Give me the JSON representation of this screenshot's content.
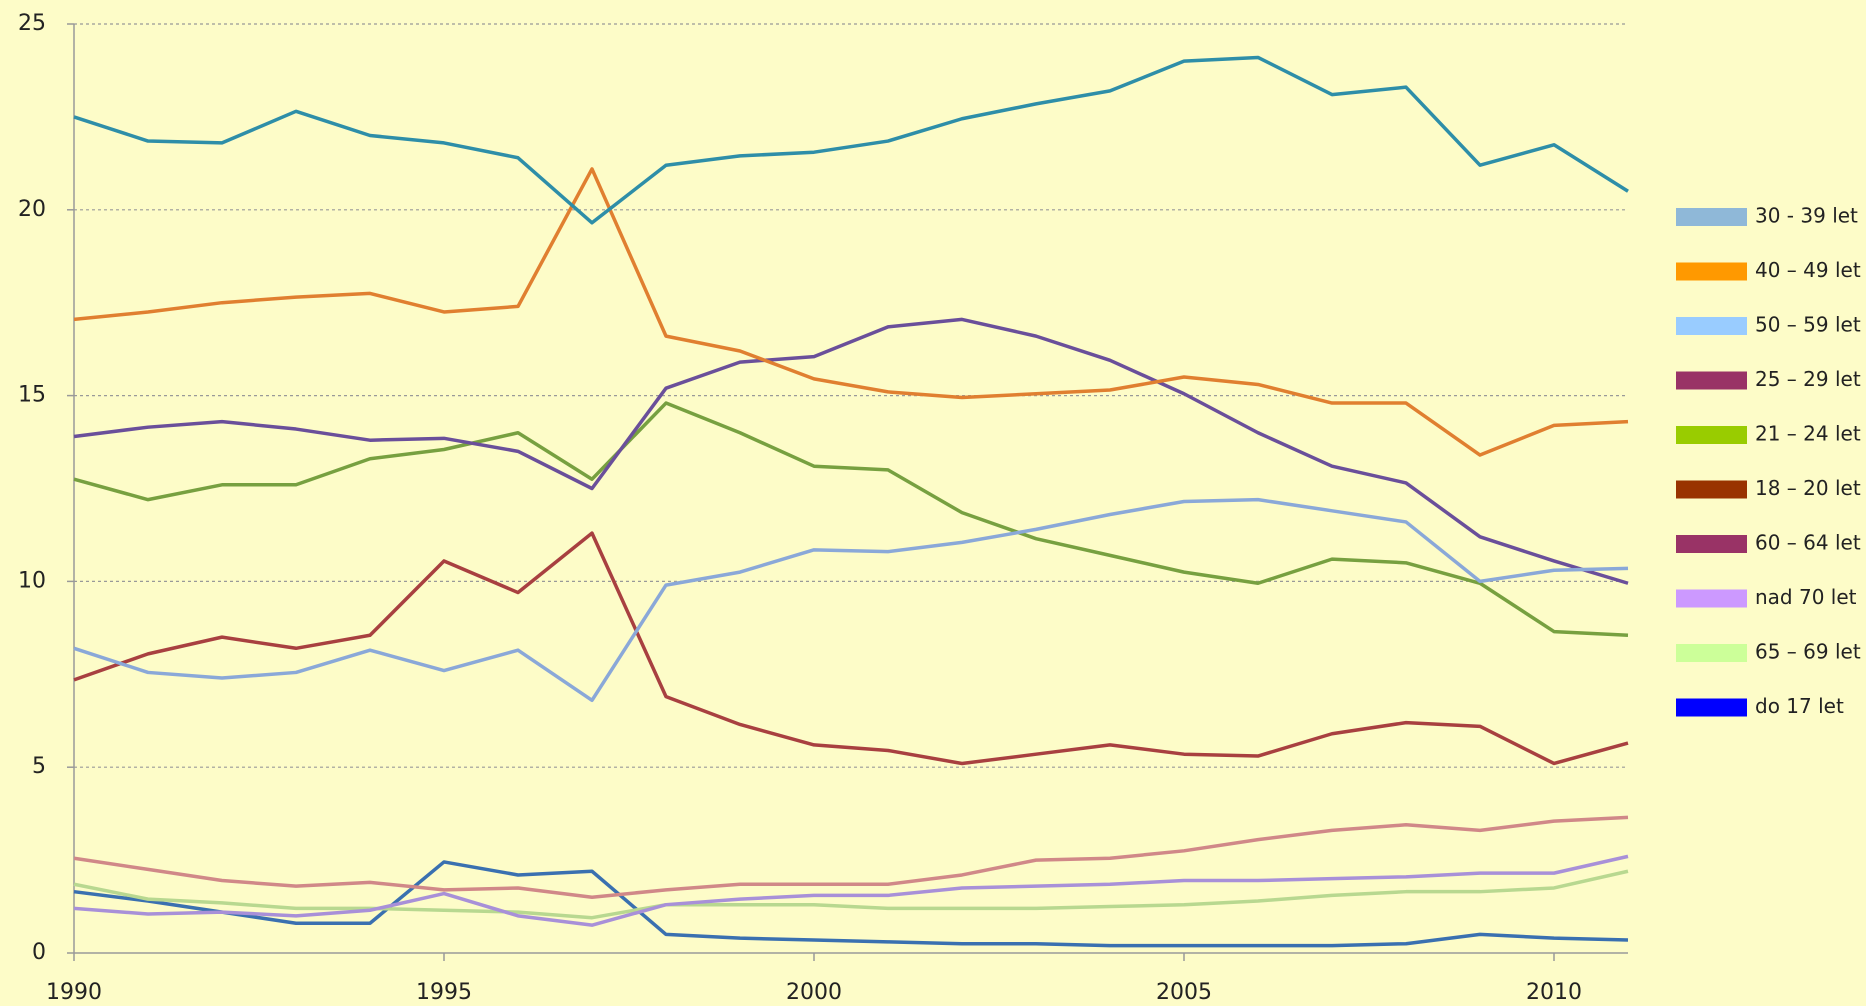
{
  "chart_data": {
    "type": "line",
    "x": [
      1990,
      1991,
      1992,
      1993,
      1994,
      1995,
      1996,
      1997,
      1998,
      1999,
      2000,
      2001,
      2002,
      2003,
      2004,
      2005,
      2006,
      2007,
      2008,
      2009,
      2010,
      2011
    ],
    "xlim": [
      1990,
      2011
    ],
    "xticks": [
      1990,
      1995,
      2000,
      2005,
      2010
    ],
    "ylim": [
      0,
      25
    ],
    "yticks": [
      0,
      5,
      10,
      15,
      20,
      25
    ],
    "grid": true,
    "legend": "right",
    "series": [
      {
        "name": "30 - 39 let",
        "color": "#2e8ea8",
        "legend_color": "#8fb8d8",
        "values": [
          22.5,
          21.85,
          21.8,
          22.65,
          22.0,
          21.8,
          21.4,
          19.65,
          21.2,
          21.45,
          21.55,
          21.85,
          22.45,
          22.85,
          23.2,
          24.0,
          24.1,
          23.1,
          23.3,
          21.2,
          21.75,
          20.5
        ]
      },
      {
        "name": "40 – 49 let",
        "color": "#e07f30",
        "legend_color": "#ff9900",
        "values": [
          17.05,
          17.25,
          17.5,
          17.65,
          17.75,
          17.25,
          17.4,
          21.1,
          16.6,
          16.2,
          15.45,
          15.1,
          14.95,
          15.05,
          15.15,
          15.5,
          15.3,
          14.8,
          14.8,
          13.4,
          14.2,
          14.3
        ]
      },
      {
        "name": "50 – 59 let",
        "color": "#8aa8d8",
        "legend_color": "#99ccff",
        "values": [
          8.2,
          7.55,
          7.4,
          7.55,
          8.15,
          7.6,
          8.15,
          6.8,
          9.9,
          10.25,
          10.85,
          10.8,
          11.05,
          11.4,
          11.8,
          12.15,
          12.2,
          11.9,
          11.6,
          10.0,
          10.3,
          10.35
        ]
      },
      {
        "name": "25 – 29 let",
        "color": "#6a4f9a",
        "legend_color": "#993366",
        "values": [
          13.9,
          14.15,
          14.3,
          14.1,
          13.8,
          13.85,
          13.5,
          12.5,
          15.2,
          15.9,
          16.05,
          16.85,
          17.05,
          16.6,
          15.95,
          15.05,
          14.0,
          13.1,
          12.65,
          11.2,
          10.55,
          9.95
        ]
      },
      {
        "name": "21 – 24 let",
        "color": "#77a040",
        "legend_color": "#99cc00",
        "values": [
          12.75,
          12.2,
          12.6,
          12.6,
          13.3,
          13.55,
          14.0,
          12.75,
          14.8,
          14.0,
          13.1,
          13.0,
          11.85,
          11.15,
          10.7,
          10.25,
          9.95,
          10.6,
          10.5,
          9.95,
          8.65,
          8.55
        ]
      },
      {
        "name": "18 – 20 let",
        "color": "#a84040",
        "legend_color": "#993300",
        "values": [
          7.35,
          8.05,
          8.5,
          8.2,
          8.55,
          10.55,
          9.7,
          11.3,
          6.9,
          6.15,
          5.6,
          5.45,
          5.1,
          5.35,
          5.6,
          5.35,
          5.3,
          5.9,
          6.2,
          6.1,
          5.1,
          5.65
        ]
      },
      {
        "name": "60 – 64 let",
        "color": "#d08888",
        "legend_color": "#993366",
        "values": [
          2.55,
          2.25,
          1.95,
          1.8,
          1.9,
          1.7,
          1.75,
          1.5,
          1.7,
          1.85,
          1.85,
          1.85,
          2.1,
          2.5,
          2.55,
          2.75,
          3.05,
          3.3,
          3.45,
          3.3,
          3.55,
          3.65
        ]
      },
      {
        "name": "nad 70 let",
        "color": "#a890d8",
        "legend_color": "#cc99ff",
        "values": [
          1.2,
          1.05,
          1.1,
          1.0,
          1.15,
          1.6,
          1.0,
          0.75,
          1.3,
          1.45,
          1.55,
          1.55,
          1.75,
          1.8,
          1.85,
          1.95,
          1.95,
          2.0,
          2.05,
          2.15,
          2.15,
          2.6
        ]
      },
      {
        "name": "65 – 69 let",
        "color": "#b8d890",
        "legend_color": "#ccff99",
        "values": [
          1.85,
          1.45,
          1.35,
          1.2,
          1.2,
          1.15,
          1.1,
          0.95,
          1.3,
          1.3,
          1.3,
          1.2,
          1.2,
          1.2,
          1.25,
          1.3,
          1.4,
          1.55,
          1.65,
          1.65,
          1.75,
          2.2
        ]
      },
      {
        "name": "do 17 let",
        "color": "#3a70b0",
        "legend_color": "#0000ff",
        "values": [
          1.65,
          1.4,
          1.1,
          0.8,
          0.8,
          2.45,
          2.1,
          2.2,
          0.5,
          0.4,
          0.35,
          0.3,
          0.25,
          0.25,
          0.2,
          0.2,
          0.2,
          0.2,
          0.25,
          0.5,
          0.4,
          0.35
        ]
      }
    ]
  }
}
